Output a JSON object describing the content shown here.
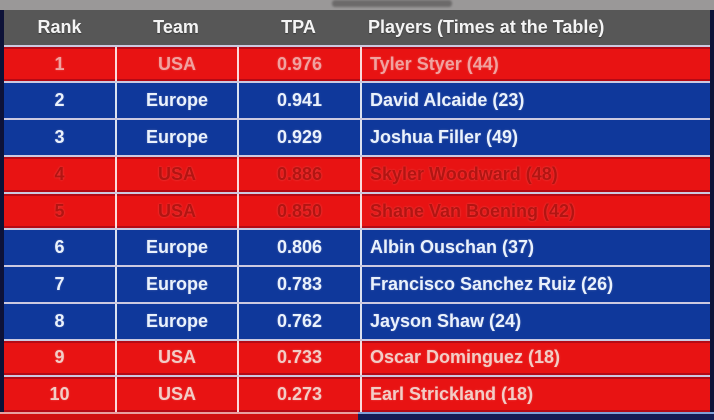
{
  "graphic": {
    "top_strip_color": "#9a9898",
    "page_edge_color": "#0d1238",
    "header": {
      "bg": "#575757",
      "text_color": "#f4f4f4",
      "columns": {
        "rank": "Rank",
        "team": "Team",
        "tpa": "TPA",
        "players": "Players (Times at the Table)"
      }
    },
    "team_colors": {
      "USA": "#e81313",
      "Europe": "#0f389b"
    },
    "rows": [
      {
        "rank": "1",
        "team": "USA",
        "tpa": "0.976",
        "player": "Tyler Styer (44)",
        "bg": "#e81313",
        "text": "#f0a29f"
      },
      {
        "rank": "2",
        "team": "Europe",
        "tpa": "0.941",
        "player": "David Alcaide (23)",
        "bg": "#0f389b",
        "text": "#eaf2fc"
      },
      {
        "rank": "3",
        "team": "Europe",
        "tpa": "0.929",
        "player": "Joshua Filler (49)",
        "bg": "#0f389b",
        "text": "#eaf2fc"
      },
      {
        "rank": "4",
        "team": "USA",
        "tpa": "0.886",
        "player": "Skyler Woodward (48)",
        "bg": "#e81313",
        "text": "#b21512"
      },
      {
        "rank": "5",
        "team": "USA",
        "tpa": "0.850",
        "player": "Shane Van Boening (42)",
        "bg": "#e81313",
        "text": "#b21512"
      },
      {
        "rank": "6",
        "team": "Europe",
        "tpa": "0.806",
        "player": "Albin Ouschan (37)",
        "bg": "#0f389b",
        "text": "#eaf2fc"
      },
      {
        "rank": "7",
        "team": "Europe",
        "tpa": "0.783",
        "player": "Francisco Sanchez Ruiz (26)",
        "bg": "#0f389b",
        "text": "#eaf2fc"
      },
      {
        "rank": "8",
        "team": "Europe",
        "tpa": "0.762",
        "player": "Jayson Shaw (24)",
        "bg": "#0f389b",
        "text": "#eaf2fc"
      },
      {
        "rank": "9",
        "team": "USA",
        "tpa": "0.733",
        "player": "Oscar Dominguez (18)",
        "bg": "#e81313",
        "text": "#f2cdc6"
      },
      {
        "rank": "10",
        "team": "USA",
        "tpa": "0.273",
        "player": "Earl Strickland (18)",
        "bg": "#e81313",
        "text": "#f2cdc6"
      }
    ],
    "bottom_strip": {
      "left_color": "#d01010",
      "right_color": "#131c55"
    }
  },
  "chart_data": {
    "type": "table",
    "title": "TPA standings (Rank / Team / TPA / Players with Times at the Table)",
    "columns": [
      "Rank",
      "Team",
      "TPA",
      "Players (Times at the Table)"
    ],
    "rows": [
      [
        1,
        "USA",
        0.976,
        "Tyler Styer (44)"
      ],
      [
        2,
        "Europe",
        0.941,
        "David Alcaide (23)"
      ],
      [
        3,
        "Europe",
        0.929,
        "Joshua Filler (49)"
      ],
      [
        4,
        "USA",
        0.886,
        "Skyler Woodward (48)"
      ],
      [
        5,
        "USA",
        0.85,
        "Shane Van Boening (42)"
      ],
      [
        6,
        "Europe",
        0.806,
        "Albin Ouschan (37)"
      ],
      [
        7,
        "Europe",
        0.783,
        "Francisco Sanchez Ruiz (26)"
      ],
      [
        8,
        "Europe",
        0.762,
        "Jayson Shaw (24)"
      ],
      [
        9,
        "USA",
        0.733,
        "Oscar Dominguez (18)"
      ],
      [
        10,
        "USA",
        0.273,
        "Earl Strickland (18)"
      ]
    ]
  }
}
